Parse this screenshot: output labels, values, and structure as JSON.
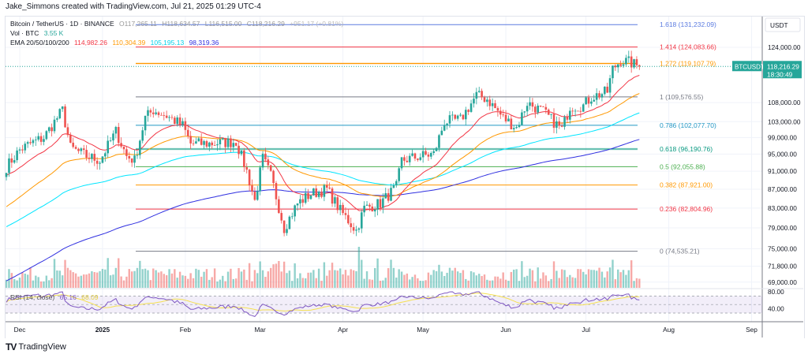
{
  "credit": "Jake_Simmons created with TradingView.com, Jul 21, 2025 01:29 UTC-4",
  "legend": {
    "symbol": "Bitcoin / TetherUS · 1D · BINANCE",
    "o": "O117,265.11",
    "h": "H118,634.57",
    "l": "L116,515.00",
    "c": "C118,216.29",
    "chg": "+951.17 (+0.81%)",
    "vol_label": "Vol · BTC",
    "vol_value": "3.55 K",
    "ema_label": "EMA 20/50/100/200",
    "ema20": "114,982.26",
    "ema50": "110,304.39",
    "ema100": "105,195.13",
    "ema200": "98,319.36",
    "rsi_label": "RSI (14, close)",
    "rsi_value": "65.16",
    "rsi_ma": "68.09"
  },
  "price_axis": {
    "unit": "USDT",
    "ticks": [
      "124,000.00",
      "108,000.00",
      "103,000.00",
      "99,000.00",
      "95,000.00",
      "91,000.00",
      "87,000.00",
      "83,000.00",
      "79,000.00",
      "75,000.00",
      "71,800.00",
      "69,000.00"
    ],
    "tick_values": [
      124000,
      108000,
      103000,
      99000,
      95000,
      91000,
      87000,
      83000,
      79000,
      75000,
      71800,
      69000
    ],
    "last_symbol": "BTCUSDT",
    "last_price": "118,216.29",
    "countdown": "18:30:49",
    "rsi_ticks": [
      "80.00",
      "40.00"
    ]
  },
  "time_axis": {
    "labels": [
      "Dec",
      "2025",
      "Feb",
      "Mar",
      "Apr",
      "May",
      "Jun",
      "Jul",
      "Aug",
      "Sep"
    ],
    "dates": [
      "2024-12-01",
      "2025-01-01",
      "2025-02-01",
      "2025-03-01",
      "2025-04-01",
      "2025-05-01",
      "2025-06-01",
      "2025-07-01",
      "2025-08-01",
      "2025-09-01"
    ]
  },
  "colors": {
    "up": "#26a69a",
    "down": "#ef5350",
    "ema20": "#f23645",
    "ema50": "#ff9800",
    "ema100": "#00e5ff",
    "ema200": "#3030e0",
    "rsi": "#7e57c2",
    "rsi_ma": "#f5e050"
  },
  "fib_levels": [
    {
      "label": "1.618 (131,232.09)",
      "price": 131232.09,
      "color": "#5b7be0"
    },
    {
      "label": "1.414 (124,083.66)",
      "price": 124083.66,
      "color": "#f23645"
    },
    {
      "label": "1.272 (119,107.79)",
      "price": 119107.79,
      "color": "#ff9800"
    },
    {
      "label": "1 (109,576.55)",
      "price": 109576.55,
      "color": "#787b86"
    },
    {
      "label": "0.786 (102,077.70)",
      "price": 102077.7,
      "color": "#2196c4"
    },
    {
      "label": "0.618 (96,190.76)",
      "price": 96190.76,
      "color": "#089981"
    },
    {
      "label": "0.5 (92,055.88)",
      "price": 92055.88,
      "color": "#4caf50"
    },
    {
      "label": "0.382 (87,921.00)",
      "price": 87921.0,
      "color": "#ff9800"
    },
    {
      "label": "0.236 (82,804.96)",
      "price": 82804.96,
      "color": "#f23645"
    },
    {
      "label": "0 (74,535.21)",
      "price": 74535.21,
      "color": "#787b86"
    }
  ],
  "chart_data": {
    "type": "candlestick",
    "scale": "log",
    "closes": [
      [
        "2024-11-26",
        92000
      ],
      [
        "2024-12-01",
        96000
      ],
      [
        "2024-12-05",
        97500
      ],
      [
        "2024-12-10",
        99000
      ],
      [
        "2024-12-17",
        106000
      ],
      [
        "2024-12-20",
        96500
      ],
      [
        "2024-12-26",
        94500
      ],
      [
        "2024-12-31",
        93500
      ],
      [
        "2025-01-06",
        100500
      ],
      [
        "2025-01-10",
        94500
      ],
      [
        "2025-01-13",
        93500
      ],
      [
        "2025-01-17",
        104000
      ],
      [
        "2025-01-20",
        106000
      ],
      [
        "2025-01-25",
        104500
      ],
      [
        "2025-01-31",
        102000
      ],
      [
        "2025-02-03",
        97500
      ],
      [
        "2025-02-10",
        97500
      ],
      [
        "2025-02-20",
        98000
      ],
      [
        "2025-02-24",
        91000
      ],
      [
        "2025-02-27",
        84500
      ],
      [
        "2025-03-02",
        94000
      ],
      [
        "2025-03-05",
        90000
      ],
      [
        "2025-03-10",
        79000
      ],
      [
        "2025-03-15",
        84000
      ],
      [
        "2025-03-20",
        86000
      ],
      [
        "2025-03-26",
        87000
      ],
      [
        "2025-03-31",
        82500
      ],
      [
        "2025-04-06",
        78500
      ],
      [
        "2025-04-09",
        83000
      ],
      [
        "2025-04-15",
        84000
      ],
      [
        "2025-04-21",
        87500
      ],
      [
        "2025-04-23",
        93500
      ],
      [
        "2025-04-30",
        94500
      ],
      [
        "2025-05-05",
        95000
      ],
      [
        "2025-05-09",
        103000
      ],
      [
        "2025-05-15",
        103500
      ],
      [
        "2025-05-21",
        110000
      ],
      [
        "2025-05-25",
        109000
      ],
      [
        "2025-05-31",
        104000
      ],
      [
        "2025-06-05",
        101500
      ],
      [
        "2025-06-09",
        108000
      ],
      [
        "2025-06-15",
        105500
      ],
      [
        "2025-06-22",
        101000
      ],
      [
        "2025-06-25",
        107000
      ],
      [
        "2025-06-30",
        107200
      ],
      [
        "2025-07-03",
        109500
      ],
      [
        "2025-07-09",
        111000
      ],
      [
        "2025-07-11",
        117500
      ],
      [
        "2025-07-14",
        120000
      ],
      [
        "2025-07-17",
        119500
      ],
      [
        "2025-07-21",
        118216.29
      ]
    ],
    "ema_start": {
      "ema20": 90000,
      "ema50": 83000,
      "ema100": 79000,
      "ema200": 69000
    },
    "ylim": [
      67500,
      134000
    ],
    "xlim": [
      "2024-11-24",
      "2025-09-05"
    ]
  }
}
